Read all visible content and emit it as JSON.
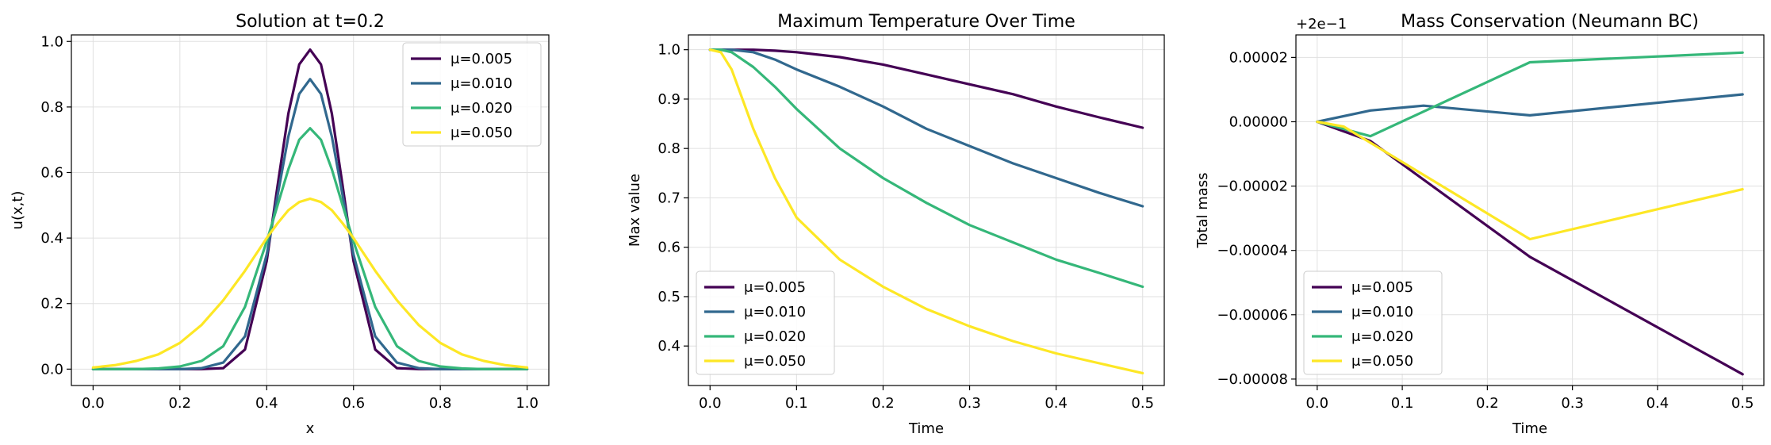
{
  "colors": {
    "mu_0.005": "#440154",
    "mu_0.010": "#31688e",
    "mu_0.020": "#35b779",
    "mu_0.050": "#fde725",
    "grid": "#e0e0e0"
  },
  "chart_data": [
    {
      "type": "line",
      "title": "Solution at t=0.2",
      "xlabel": "x",
      "ylabel": "u(x,t)",
      "xlim": [
        -0.05,
        1.05
      ],
      "ylim": [
        -0.05,
        1.02
      ],
      "xticks": [
        0.0,
        0.2,
        0.4,
        0.6,
        0.8,
        1.0
      ],
      "xtick_labels": [
        "0.0",
        "0.2",
        "0.4",
        "0.6",
        "0.8",
        "1.0"
      ],
      "yticks": [
        0.0,
        0.2,
        0.4,
        0.6,
        0.8,
        1.0
      ],
      "ytick_labels": [
        "0.0",
        "0.2",
        "0.4",
        "0.6",
        "0.8",
        "1.0"
      ],
      "grid": true,
      "legend": "upper right",
      "x": [
        0.0,
        0.05,
        0.1,
        0.15,
        0.2,
        0.25,
        0.3,
        0.35,
        0.4,
        0.425,
        0.45,
        0.475,
        0.5,
        0.525,
        0.55,
        0.575,
        0.6,
        0.65,
        0.7,
        0.75,
        0.8,
        0.85,
        0.9,
        0.95,
        1.0
      ],
      "series": [
        {
          "name": "μ=0.005",
          "color": "#440154",
          "values": [
            0.0,
            0.0,
            0.0,
            0.0,
            0.0,
            0.0,
            0.003,
            0.06,
            0.33,
            0.56,
            0.78,
            0.93,
            0.975,
            0.93,
            0.78,
            0.56,
            0.33,
            0.06,
            0.003,
            0.0,
            0.0,
            0.0,
            0.0,
            0.0,
            0.0
          ]
        },
        {
          "name": "μ=0.010",
          "color": "#31688e",
          "values": [
            0.0,
            0.0,
            0.0,
            0.0,
            0.0,
            0.003,
            0.02,
            0.1,
            0.35,
            0.53,
            0.71,
            0.84,
            0.885,
            0.84,
            0.71,
            0.53,
            0.35,
            0.1,
            0.02,
            0.003,
            0.0,
            0.0,
            0.0,
            0.0,
            0.0
          ]
        },
        {
          "name": "μ=0.020",
          "color": "#35b779",
          "values": [
            0.0,
            0.0,
            0.0,
            0.002,
            0.008,
            0.025,
            0.07,
            0.19,
            0.39,
            0.5,
            0.61,
            0.7,
            0.735,
            0.7,
            0.61,
            0.5,
            0.39,
            0.19,
            0.07,
            0.025,
            0.008,
            0.002,
            0.0,
            0.0,
            0.0
          ]
        },
        {
          "name": "μ=0.050",
          "color": "#fde725",
          "values": [
            0.005,
            0.012,
            0.025,
            0.045,
            0.08,
            0.135,
            0.21,
            0.3,
            0.4,
            0.445,
            0.485,
            0.51,
            0.52,
            0.51,
            0.485,
            0.445,
            0.4,
            0.3,
            0.21,
            0.135,
            0.08,
            0.045,
            0.025,
            0.012,
            0.005
          ]
        }
      ]
    },
    {
      "type": "line",
      "title": "Maximum Temperature Over Time",
      "xlabel": "Time",
      "ylabel": "Max value",
      "xlim": [
        -0.025,
        0.525
      ],
      "ylim": [
        0.32,
        1.03
      ],
      "xticks": [
        0.0,
        0.1,
        0.2,
        0.3,
        0.4,
        0.5
      ],
      "xtick_labels": [
        "0.0",
        "0.1",
        "0.2",
        "0.3",
        "0.4",
        "0.5"
      ],
      "yticks": [
        0.4,
        0.5,
        0.6,
        0.7,
        0.8,
        0.9,
        1.0
      ],
      "ytick_labels": [
        "0.4",
        "0.5",
        "0.6",
        "0.7",
        "0.8",
        "0.9",
        "1.0"
      ],
      "grid": true,
      "legend": "lower left",
      "x": [
        0.0,
        0.0125,
        0.025,
        0.05,
        0.075,
        0.1,
        0.15,
        0.2,
        0.25,
        0.3,
        0.35,
        0.4,
        0.45,
        0.5
      ],
      "series": [
        {
          "name": "μ=0.005",
          "color": "#440154",
          "values": [
            1.0,
            1.0,
            1.0,
            1.0,
            0.998,
            0.995,
            0.985,
            0.97,
            0.95,
            0.93,
            0.91,
            0.885,
            0.863,
            0.842
          ]
        },
        {
          "name": "μ=0.010",
          "color": "#31688e",
          "values": [
            1.0,
            1.0,
            1.0,
            0.995,
            0.98,
            0.96,
            0.925,
            0.885,
            0.84,
            0.805,
            0.77,
            0.74,
            0.71,
            0.683
          ]
        },
        {
          "name": "μ=0.020",
          "color": "#35b779",
          "values": [
            1.0,
            1.0,
            0.995,
            0.965,
            0.925,
            0.88,
            0.8,
            0.74,
            0.69,
            0.645,
            0.61,
            0.575,
            0.548,
            0.52
          ]
        },
        {
          "name": "μ=0.050",
          "color": "#fde725",
          "values": [
            1.0,
            0.995,
            0.96,
            0.84,
            0.74,
            0.66,
            0.575,
            0.52,
            0.475,
            0.44,
            0.41,
            0.385,
            0.365,
            0.345
          ]
        }
      ]
    },
    {
      "type": "line",
      "title": "Mass Conservation (Neumann BC)",
      "offset_label": "+2e−1",
      "xlabel": "Time",
      "ylabel": "Total mass",
      "xlim": [
        -0.025,
        0.525
      ],
      "ylim": [
        -8.2e-05,
        2.7e-05
      ],
      "xticks": [
        0.0,
        0.1,
        0.2,
        0.3,
        0.4,
        0.5
      ],
      "xtick_labels": [
        "0.0",
        "0.1",
        "0.2",
        "0.3",
        "0.4",
        "0.5"
      ],
      "yticks": [
        -8e-05,
        -6e-05,
        -4e-05,
        -2e-05,
        0.0,
        2e-05
      ],
      "ytick_labels": [
        "−0.00008",
        "−0.00006",
        "−0.00004",
        "−0.00002",
        "0.00000",
        "0.00002"
      ],
      "grid": true,
      "legend": "lower left",
      "series": [
        {
          "name": "μ=0.005",
          "color": "#440154",
          "x": [
            0.0,
            0.0625,
            0.25,
            0.5
          ],
          "values": [
            0.0,
            -6e-06,
            -4.2e-05,
            -7.85e-05
          ]
        },
        {
          "name": "μ=0.010",
          "color": "#31688e",
          "x": [
            0.0,
            0.0625,
            0.125,
            0.25,
            0.5
          ],
          "values": [
            0.0,
            3.5e-06,
            5e-06,
            2e-06,
            8.5e-06
          ]
        },
        {
          "name": "μ=0.020",
          "color": "#35b779",
          "x": [
            0.0,
            0.0625,
            0.25,
            0.5
          ],
          "values": [
            0.0,
            -4.5e-06,
            1.85e-05,
            2.15e-05
          ]
        },
        {
          "name": "μ=0.050",
          "color": "#fde725",
          "x": [
            0.0,
            0.03125,
            0.25,
            0.5
          ],
          "values": [
            0.0,
            -1.5e-06,
            -3.65e-05,
            -2.1e-05
          ]
        }
      ]
    }
  ]
}
